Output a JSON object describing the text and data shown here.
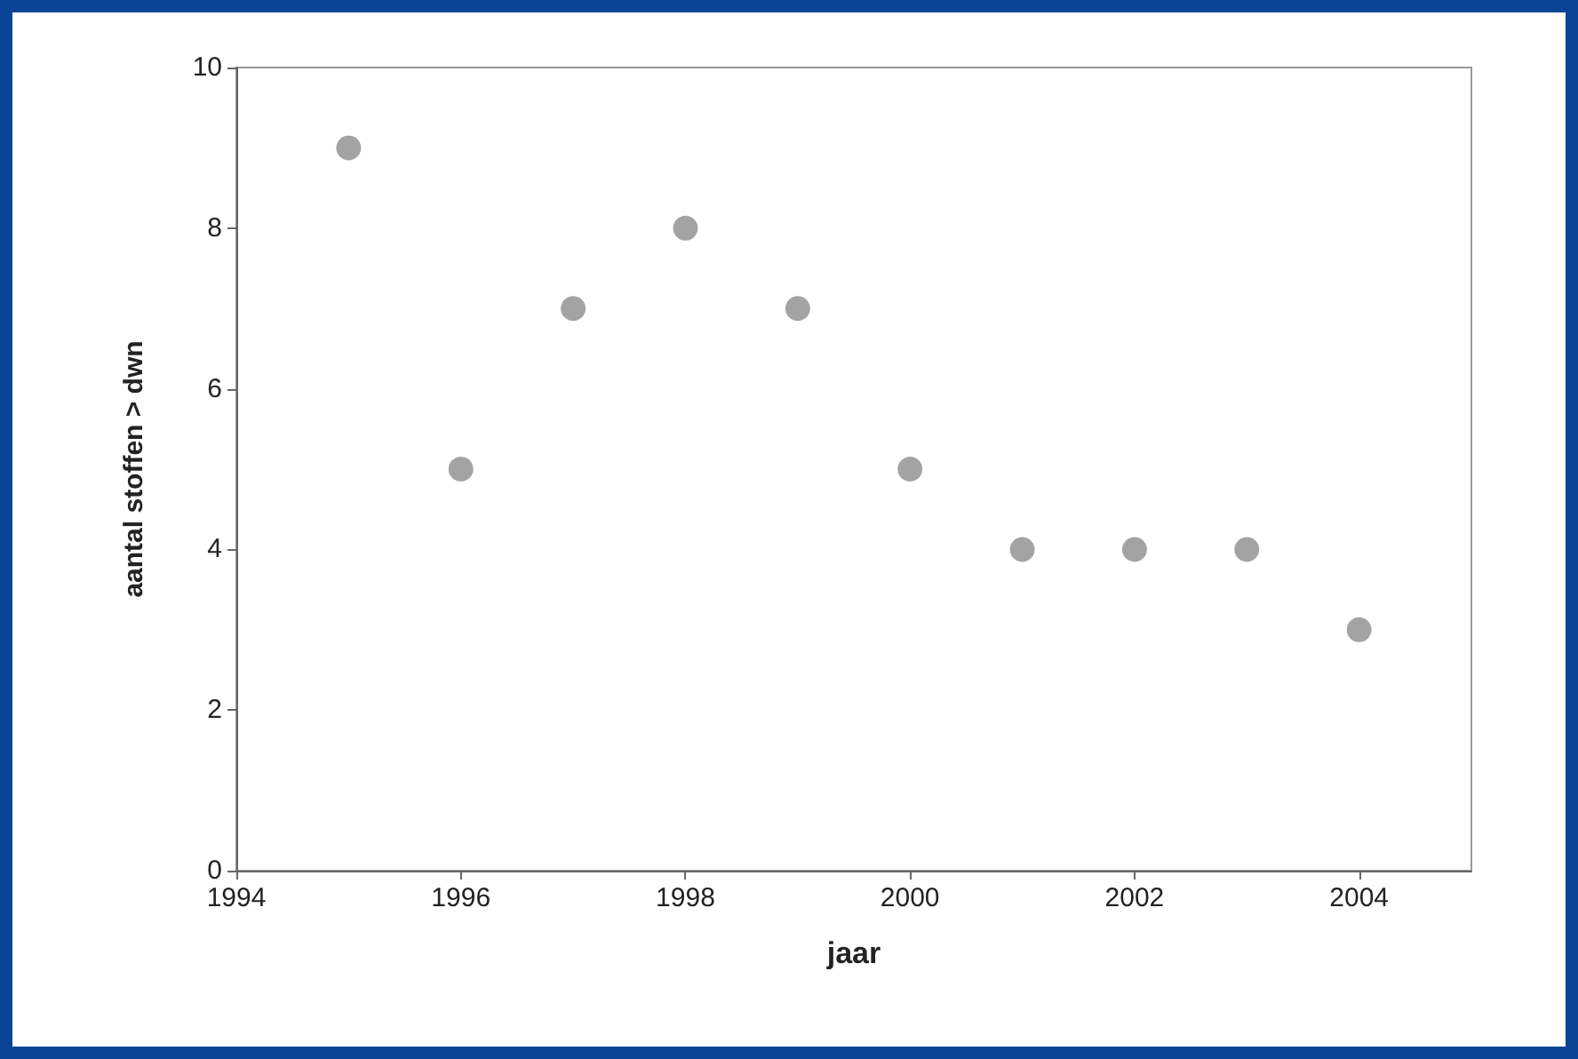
{
  "chart_data": {
    "type": "scatter",
    "xlabel": "jaar",
    "ylabel": "aantal stoffen > dwn",
    "x": [
      1995,
      1996,
      1997,
      1998,
      1999,
      2000,
      2001,
      2002,
      2003,
      2004
    ],
    "series": [
      {
        "color": "#8c8c8c",
        "values": [
          9,
          5,
          7,
          8,
          7,
          5,
          4,
          4,
          4,
          3
        ]
      }
    ],
    "xlim": [
      1994,
      2005
    ],
    "xticks": [
      1994,
      1996,
      1998,
      2000,
      2002,
      2004
    ],
    "ylim": [
      0,
      10
    ],
    "yticks": [
      0,
      2,
      4,
      6,
      8,
      10
    ],
    "grid": false,
    "marker": "circle"
  }
}
